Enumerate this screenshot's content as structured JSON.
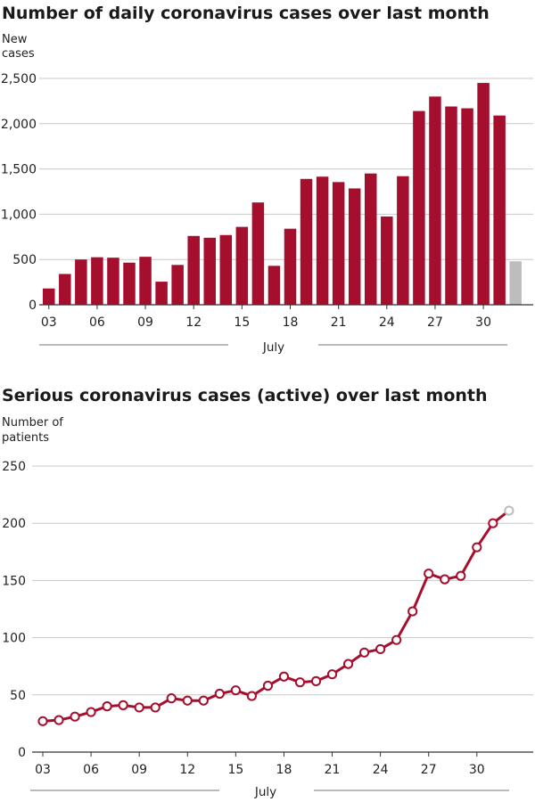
{
  "chart_data": [
    {
      "type": "bar",
      "title": "Number of daily coronavirus cases over last month",
      "ylabel": "New cases",
      "ylabel_lines": [
        "New",
        "cases"
      ],
      "xlabel": "July",
      "ylim": [
        0,
        2500
      ],
      "yticks": [
        0,
        500,
        1000,
        1500,
        2000,
        2500
      ],
      "ytick_labels": [
        "0",
        "500",
        "1,000",
        "1,500",
        "2,000",
        "2,500"
      ],
      "categories": [
        "03",
        "04",
        "05",
        "06",
        "07",
        "08",
        "09",
        "10",
        "11",
        "12",
        "13",
        "14",
        "15",
        "16",
        "17",
        "18",
        "19",
        "20",
        "21",
        "22",
        "23",
        "24",
        "25",
        "26",
        "27",
        "28",
        "29",
        "30",
        "31",
        "01"
      ],
      "values": [
        180,
        340,
        500,
        525,
        520,
        465,
        530,
        255,
        440,
        760,
        740,
        770,
        860,
        1130,
        430,
        840,
        1390,
        1415,
        1355,
        1285,
        1450,
        975,
        1420,
        2140,
        2300,
        2190,
        2170,
        2450,
        2090,
        480
      ],
      "xtick_labels": [
        "03",
        "06",
        "09",
        "12",
        "15",
        "18",
        "21",
        "24",
        "27",
        "30"
      ],
      "grid": true,
      "colors": {
        "bar": "#a50f2d",
        "last_bar": "#bdbdbd"
      }
    },
    {
      "type": "line",
      "title": "Serious coronavirus cases (active) over last month",
      "ylabel": "Number of patients",
      "ylabel_lines": [
        "Number of",
        "patients"
      ],
      "xlabel": "July",
      "ylim": [
        0,
        250
      ],
      "yticks": [
        0,
        50,
        100,
        150,
        200,
        250
      ],
      "ytick_labels": [
        "0",
        "50",
        "100",
        "150",
        "200",
        "250"
      ],
      "categories": [
        "03",
        "04",
        "05",
        "06",
        "07",
        "08",
        "09",
        "10",
        "11",
        "12",
        "13",
        "14",
        "15",
        "16",
        "17",
        "18",
        "19",
        "20",
        "21",
        "22",
        "23",
        "24",
        "25",
        "26",
        "27",
        "28",
        "29",
        "30",
        "31",
        "01"
      ],
      "values": [
        27,
        28,
        31,
        35,
        40,
        41,
        39,
        39,
        47,
        45,
        45,
        51,
        54,
        49,
        58,
        66,
        61,
        62,
        68,
        77,
        87,
        90,
        98,
        123,
        156,
        151,
        154,
        179,
        200,
        211
      ],
      "xtick_labels": [
        "03",
        "06",
        "09",
        "12",
        "15",
        "18",
        "21",
        "24",
        "27",
        "30"
      ],
      "grid": true,
      "colors": {
        "line": "#a50f2d",
        "last_point": "#bdbdbd"
      }
    }
  ]
}
